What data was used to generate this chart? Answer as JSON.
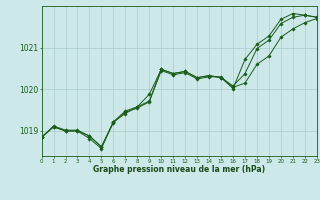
{
  "bg_color": "#cce8e8",
  "grid_color": "#aacccc",
  "line_color": "#1a5c1a",
  "marker_color": "#1a5c1a",
  "title": "Graphe pression niveau de la mer (hPa)",
  "title_color": "#1a4a1a",
  "xlim": [
    0,
    23
  ],
  "ylim": [
    1018.4,
    1022.0
  ],
  "yticks": [
    1019,
    1020,
    1021
  ],
  "xticks": [
    0,
    1,
    2,
    3,
    4,
    5,
    6,
    7,
    8,
    9,
    10,
    11,
    12,
    13,
    14,
    15,
    16,
    17,
    18,
    19,
    20,
    21,
    22,
    23
  ],
  "series1_x": [
    0,
    1,
    2,
    3,
    4,
    5,
    6,
    7,
    8,
    9,
    10,
    11,
    12,
    13,
    14,
    15,
    16,
    17,
    18,
    19,
    20,
    21,
    22,
    23
  ],
  "series1_y": [
    1018.85,
    1019.1,
    1019.0,
    1019.0,
    1018.88,
    1018.62,
    1019.2,
    1019.45,
    1019.55,
    1019.7,
    1020.45,
    1020.35,
    1020.4,
    1020.25,
    1020.3,
    1020.3,
    1020.05,
    1020.15,
    1020.6,
    1020.8,
    1021.25,
    1021.45,
    1021.6,
    1021.7
  ],
  "series2_x": [
    0,
    1,
    2,
    3,
    4,
    5,
    6,
    7,
    8,
    9,
    10,
    11,
    12,
    13,
    14,
    15,
    16,
    17,
    18,
    19,
    20,
    21,
    22,
    23
  ],
  "series2_y": [
    1018.85,
    1019.1,
    1019.0,
    1019.0,
    1018.82,
    1018.58,
    1019.22,
    1019.48,
    1019.58,
    1019.88,
    1020.48,
    1020.38,
    1020.43,
    1020.28,
    1020.33,
    1020.28,
    1020.08,
    1020.38,
    1020.98,
    1021.18,
    1021.58,
    1021.73,
    1021.78,
    1021.73
  ],
  "series3_x": [
    0,
    1,
    2,
    3,
    4,
    5,
    6,
    7,
    8,
    9,
    10,
    11,
    12,
    13,
    14,
    15,
    16,
    17,
    18,
    19,
    20,
    21,
    22,
    23
  ],
  "series3_y": [
    1018.85,
    1019.12,
    1019.02,
    1019.02,
    1018.88,
    1018.62,
    1019.22,
    1019.42,
    1019.58,
    1019.72,
    1020.48,
    1020.38,
    1020.43,
    1020.28,
    1020.33,
    1020.28,
    1020.02,
    1020.72,
    1021.08,
    1021.28,
    1021.68,
    1021.82,
    1021.78,
    1021.73
  ]
}
